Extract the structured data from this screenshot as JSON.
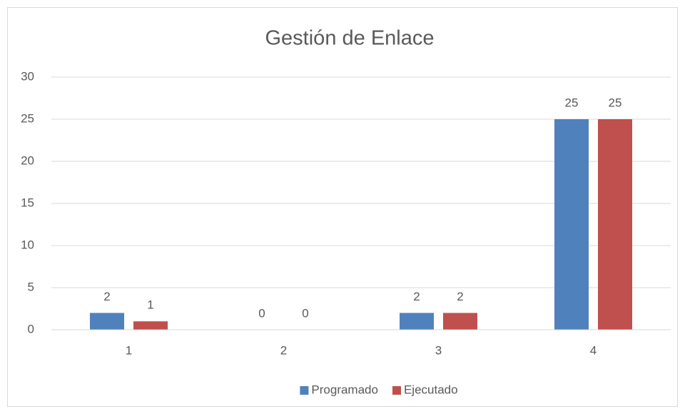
{
  "chart_data": {
    "type": "bar",
    "title": "Gestión de Enlace",
    "categories": [
      "1",
      "2",
      "3",
      "4"
    ],
    "series": [
      {
        "name": "Programado",
        "color": "#4f81bd",
        "values": [
          2,
          0,
          2,
          25
        ]
      },
      {
        "name": "Ejecutado",
        "color": "#c0504d",
        "values": [
          1,
          0,
          2,
          25
        ]
      }
    ],
    "ylim": [
      0,
      30
    ],
    "yticks": [
      0,
      5,
      10,
      15,
      20,
      25,
      30
    ],
    "grid": true,
    "legend": "bottom"
  }
}
